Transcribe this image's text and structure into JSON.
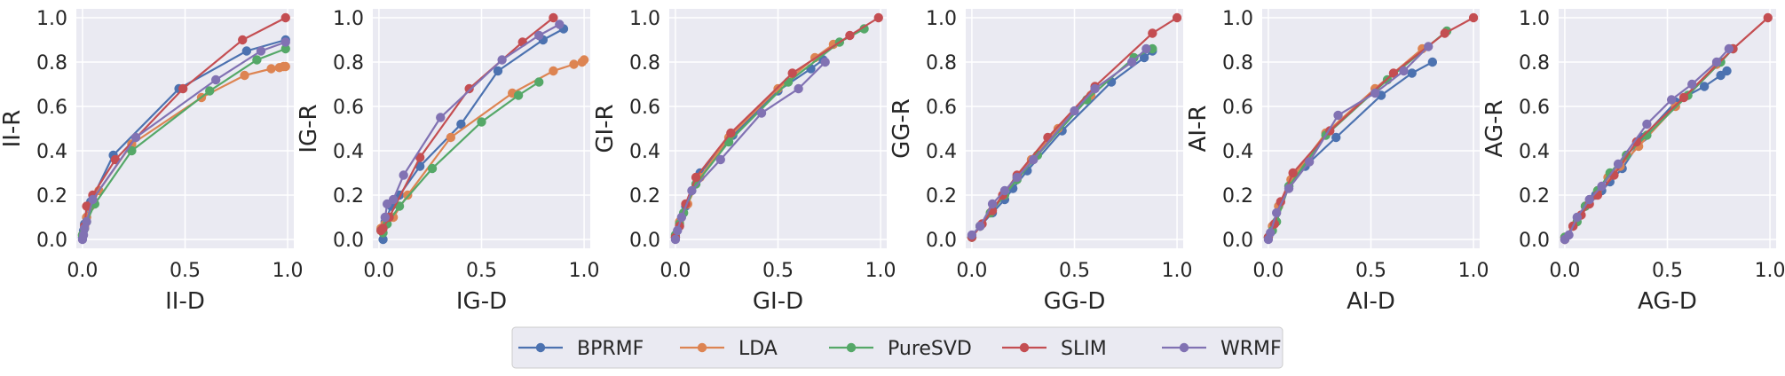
{
  "colors": {
    "background": "#eaeaf2",
    "grid": "#ffffff",
    "text": "#262626",
    "series": {
      "BPRMF": "#4c72b0",
      "LDA": "#dd8452",
      "PureSVD": "#55a868",
      "SLIM": "#c44e52",
      "WRMF": "#8172b3"
    }
  },
  "legend": {
    "position": "bottom-center",
    "entries": [
      "BPRMF",
      "LDA",
      "PureSVD",
      "SLIM",
      "WRMF"
    ]
  },
  "chart_data": [
    {
      "type": "line",
      "xlabel": "II-D",
      "ylabel": "II-R",
      "xlim": [
        -0.03,
        1.03
      ],
      "ylim": [
        -0.04,
        1.04
      ],
      "xticks": [
        "0.0",
        "0.5",
        "1.0"
      ],
      "yticks": [
        "0.0",
        "0.2",
        "0.4",
        "0.6",
        "0.8",
        "1.0"
      ],
      "grid": true,
      "series": [
        {
          "name": "BPRMF",
          "x": [
            0.0,
            0.005,
            0.01,
            0.02,
            0.04,
            0.15,
            0.47,
            0.8,
            0.99
          ],
          "y": [
            0.01,
            0.04,
            0.07,
            0.1,
            0.17,
            0.38,
            0.68,
            0.85,
            0.9
          ]
        },
        {
          "name": "LDA",
          "x": [
            0.0,
            0.01,
            0.02,
            0.04,
            0.08,
            0.24,
            0.58,
            0.79,
            0.92,
            0.96,
            0.98,
            0.99
          ],
          "y": [
            0.02,
            0.05,
            0.1,
            0.15,
            0.22,
            0.43,
            0.64,
            0.74,
            0.77,
            0.775,
            0.78,
            0.78
          ]
        },
        {
          "name": "PureSVD",
          "x": [
            0.0,
            0.01,
            0.02,
            0.06,
            0.24,
            0.62,
            0.85,
            0.99
          ],
          "y": [
            0.02,
            0.05,
            0.08,
            0.16,
            0.4,
            0.67,
            0.81,
            0.86
          ]
        },
        {
          "name": "SLIM",
          "x": [
            0.01,
            0.02,
            0.05,
            0.16,
            0.49,
            0.78,
            0.99
          ],
          "y": [
            0.06,
            0.15,
            0.2,
            0.36,
            0.68,
            0.9,
            1.0
          ]
        },
        {
          "name": "WRMF",
          "x": [
            0.0,
            0.005,
            0.01,
            0.02,
            0.05,
            0.26,
            0.65,
            0.87,
            0.99
          ],
          "y": [
            0.0,
            0.02,
            0.05,
            0.08,
            0.18,
            0.46,
            0.72,
            0.85,
            0.89
          ]
        }
      ]
    },
    {
      "type": "line",
      "xlabel": "IG-D",
      "ylabel": "IG-R",
      "xlim": [
        -0.03,
        1.03
      ],
      "ylim": [
        -0.04,
        1.04
      ],
      "xticks": [
        "0.0",
        "0.5",
        "1.0"
      ],
      "yticks": [
        "0.0",
        "0.2",
        "0.4",
        "0.6",
        "0.8",
        "1.0"
      ],
      "grid": true,
      "series": [
        {
          "name": "BPRMF",
          "x": [
            0.02,
            0.03,
            0.06,
            0.1,
            0.2,
            0.4,
            0.58,
            0.8,
            0.9
          ],
          "y": [
            0.0,
            0.08,
            0.15,
            0.2,
            0.33,
            0.52,
            0.76,
            0.9,
            0.95
          ]
        },
        {
          "name": "LDA",
          "x": [
            0.01,
            0.03,
            0.07,
            0.14,
            0.35,
            0.65,
            0.85,
            0.95,
            0.99,
            1.0
          ],
          "y": [
            0.05,
            0.07,
            0.1,
            0.2,
            0.46,
            0.66,
            0.76,
            0.79,
            0.8,
            0.81
          ]
        },
        {
          "name": "PureSVD",
          "x": [
            0.01,
            0.02,
            0.04,
            0.1,
            0.26,
            0.5,
            0.68,
            0.78
          ],
          "y": [
            0.04,
            0.03,
            0.07,
            0.15,
            0.32,
            0.53,
            0.65,
            0.71
          ]
        },
        {
          "name": "SLIM",
          "x": [
            0.01,
            0.02,
            0.05,
            0.2,
            0.44,
            0.7,
            0.85
          ],
          "y": [
            0.04,
            0.05,
            0.1,
            0.37,
            0.68,
            0.89,
            1.0
          ]
        },
        {
          "name": "WRMF",
          "x": [
            0.03,
            0.04,
            0.07,
            0.12,
            0.3,
            0.6,
            0.78,
            0.88
          ],
          "y": [
            0.1,
            0.16,
            0.18,
            0.29,
            0.55,
            0.81,
            0.92,
            0.97
          ]
        }
      ]
    },
    {
      "type": "line",
      "xlabel": "GI-D",
      "ylabel": "GI-R",
      "xlim": [
        -0.03,
        1.03
      ],
      "ylim": [
        -0.04,
        1.04
      ],
      "xticks": [
        "0.0",
        "0.5",
        "1.0"
      ],
      "yticks": [
        "0.0",
        "0.2",
        "0.4",
        "0.6",
        "0.8",
        "1.0"
      ],
      "grid": true,
      "series": [
        {
          "name": "BPRMF",
          "x": [
            0.0,
            0.02,
            0.05,
            0.12,
            0.28,
            0.5,
            0.66,
            0.72
          ],
          "y": [
            0.01,
            0.06,
            0.15,
            0.3,
            0.47,
            0.67,
            0.77,
            0.81
          ]
        },
        {
          "name": "LDA",
          "x": [
            0.0,
            0.02,
            0.06,
            0.12,
            0.26,
            0.5,
            0.68,
            0.77
          ],
          "y": [
            0.01,
            0.08,
            0.16,
            0.28,
            0.46,
            0.68,
            0.82,
            0.88
          ]
        },
        {
          "name": "PureSVD",
          "x": [
            0.0,
            0.02,
            0.04,
            0.1,
            0.26,
            0.55,
            0.8,
            0.92
          ],
          "y": [
            0.02,
            0.07,
            0.12,
            0.25,
            0.44,
            0.71,
            0.89,
            0.95
          ]
        },
        {
          "name": "SLIM",
          "x": [
            0.0,
            0.02,
            0.05,
            0.1,
            0.27,
            0.57,
            0.85,
            0.99
          ],
          "y": [
            0.01,
            0.06,
            0.16,
            0.28,
            0.48,
            0.75,
            0.92,
            1.0
          ]
        },
        {
          "name": "WRMF",
          "x": [
            0.0,
            0.01,
            0.03,
            0.08,
            0.22,
            0.42,
            0.6,
            0.73
          ],
          "y": [
            0.0,
            0.04,
            0.1,
            0.22,
            0.36,
            0.57,
            0.68,
            0.8
          ]
        }
      ]
    },
    {
      "type": "line",
      "xlabel": "GG-D",
      "ylabel": "GG-R",
      "xlim": [
        -0.03,
        1.03
      ],
      "ylim": [
        -0.04,
        1.04
      ],
      "xticks": [
        "0.0",
        "0.5",
        "1.0"
      ],
      "yticks": [
        "0.0",
        "0.2",
        "0.4",
        "0.6",
        "0.8",
        "1.0"
      ],
      "grid": true,
      "series": [
        {
          "name": "BPRMF",
          "x": [
            0.0,
            0.04,
            0.1,
            0.16,
            0.2,
            0.27,
            0.44,
            0.68,
            0.84,
            0.88
          ],
          "y": [
            0.01,
            0.06,
            0.12,
            0.18,
            0.23,
            0.31,
            0.49,
            0.71,
            0.82,
            0.85
          ]
        },
        {
          "name": "LDA",
          "x": [
            0.0,
            0.04,
            0.09,
            0.15,
            0.22,
            0.29,
            0.42,
            0.58
          ],
          "y": [
            0.01,
            0.06,
            0.12,
            0.2,
            0.28,
            0.36,
            0.5,
            0.65
          ]
        },
        {
          "name": "PureSVD",
          "x": [
            0.0,
            0.04,
            0.09,
            0.16,
            0.22,
            0.32,
            0.56,
            0.79,
            0.88
          ],
          "y": [
            0.01,
            0.06,
            0.12,
            0.2,
            0.27,
            0.38,
            0.63,
            0.82,
            0.86
          ]
        },
        {
          "name": "SLIM",
          "x": [
            0.0,
            0.05,
            0.1,
            0.15,
            0.22,
            0.37,
            0.6,
            0.88,
            1.0
          ],
          "y": [
            0.01,
            0.07,
            0.13,
            0.2,
            0.29,
            0.46,
            0.69,
            0.93,
            1.0
          ]
        },
        {
          "name": "WRMF",
          "x": [
            0.0,
            0.04,
            0.1,
            0.16,
            0.22,
            0.3,
            0.5,
            0.6,
            0.78,
            0.85
          ],
          "y": [
            0.02,
            0.06,
            0.16,
            0.22,
            0.28,
            0.36,
            0.58,
            0.68,
            0.8,
            0.86
          ]
        }
      ]
    },
    {
      "type": "line",
      "xlabel": "AI-D",
      "ylabel": "AI-R",
      "xlim": [
        -0.03,
        1.03
      ],
      "ylim": [
        -0.04,
        1.04
      ],
      "xticks": [
        "0.0",
        "0.5",
        "1.0"
      ],
      "yticks": [
        "0.0",
        "0.2",
        "0.4",
        "0.6",
        "0.8",
        "1.0"
      ],
      "grid": true,
      "series": [
        {
          "name": "BPRMF",
          "x": [
            0.0,
            0.02,
            0.05,
            0.1,
            0.18,
            0.33,
            0.55,
            0.7,
            0.8
          ],
          "y": [
            0.01,
            0.06,
            0.15,
            0.24,
            0.33,
            0.46,
            0.65,
            0.75,
            0.8
          ]
        },
        {
          "name": "LDA",
          "x": [
            0.0,
            0.02,
            0.05,
            0.11,
            0.28,
            0.52,
            0.75
          ],
          "y": [
            0.01,
            0.06,
            0.15,
            0.27,
            0.48,
            0.68,
            0.86
          ]
        },
        {
          "name": "PureSVD",
          "x": [
            0.0,
            0.02,
            0.04,
            0.1,
            0.28,
            0.58,
            0.87
          ],
          "y": [
            0.01,
            0.04,
            0.08,
            0.24,
            0.47,
            0.72,
            0.94
          ]
        },
        {
          "name": "SLIM",
          "x": [
            0.0,
            0.03,
            0.06,
            0.12,
            0.3,
            0.61,
            0.86,
            1.0
          ],
          "y": [
            0.01,
            0.07,
            0.17,
            0.3,
            0.49,
            0.75,
            0.93,
            1.0
          ]
        },
        {
          "name": "WRMF",
          "x": [
            0.0,
            0.01,
            0.04,
            0.1,
            0.2,
            0.34,
            0.52,
            0.66,
            0.78
          ],
          "y": [
            0.0,
            0.03,
            0.12,
            0.23,
            0.35,
            0.56,
            0.66,
            0.76,
            0.87
          ]
        }
      ]
    },
    {
      "type": "line",
      "xlabel": "AG-D",
      "ylabel": "AG-R",
      "xlim": [
        -0.03,
        1.03
      ],
      "ylim": [
        -0.04,
        1.04
      ],
      "xticks": [
        "0.0",
        "0.5",
        "1.0"
      ],
      "yticks": [
        "0.0",
        "0.2",
        "0.4",
        "0.6",
        "0.8",
        "1.0"
      ],
      "grid": true,
      "series": [
        {
          "name": "BPRMF",
          "x": [
            0.0,
            0.04,
            0.1,
            0.15,
            0.18,
            0.22,
            0.28,
            0.38,
            0.54,
            0.68,
            0.76,
            0.79
          ],
          "y": [
            0.0,
            0.06,
            0.15,
            0.2,
            0.22,
            0.26,
            0.32,
            0.46,
            0.62,
            0.69,
            0.74,
            0.76
          ]
        },
        {
          "name": "LDA",
          "x": [
            0.0,
            0.04,
            0.1,
            0.16,
            0.21,
            0.27,
            0.36,
            0.54,
            0.74
          ],
          "y": [
            0.01,
            0.06,
            0.15,
            0.22,
            0.28,
            0.33,
            0.42,
            0.6,
            0.79
          ]
        },
        {
          "name": "PureSVD",
          "x": [
            0.0,
            0.06,
            0.1,
            0.16,
            0.22,
            0.3,
            0.4,
            0.6,
            0.76,
            0.82
          ],
          "y": [
            0.01,
            0.08,
            0.15,
            0.22,
            0.3,
            0.38,
            0.47,
            0.65,
            0.8,
            0.86
          ]
        },
        {
          "name": "SLIM",
          "x": [
            0.0,
            0.04,
            0.08,
            0.12,
            0.16,
            0.24,
            0.35,
            0.58,
            0.82,
            0.99
          ],
          "y": [
            0.0,
            0.06,
            0.11,
            0.16,
            0.2,
            0.29,
            0.44,
            0.64,
            0.86,
            1.0
          ]
        },
        {
          "name": "WRMF",
          "x": [
            0.0,
            0.02,
            0.06,
            0.12,
            0.18,
            0.26,
            0.4,
            0.52,
            0.62,
            0.74,
            0.8
          ],
          "y": [
            0.0,
            0.02,
            0.1,
            0.18,
            0.24,
            0.34,
            0.52,
            0.63,
            0.7,
            0.8,
            0.86
          ]
        }
      ]
    }
  ]
}
